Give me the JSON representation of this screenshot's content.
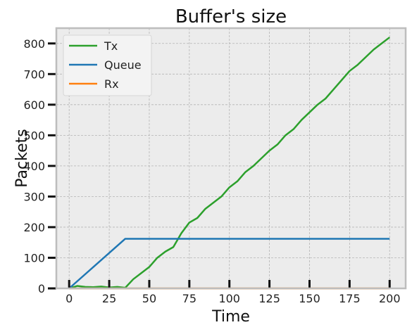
{
  "chart_data": {
    "type": "line",
    "title": "Buffer's size",
    "xlabel": "Time",
    "ylabel": "Packets",
    "xlim": [
      -8,
      210
    ],
    "ylim": [
      0,
      850
    ],
    "xticks": [
      0,
      25,
      50,
      75,
      100,
      125,
      150,
      175,
      200
    ],
    "yticks": [
      0,
      100,
      200,
      300,
      400,
      500,
      600,
      700,
      800
    ],
    "grid": true,
    "legend_position": "top-left",
    "background": "#ececec",
    "series": [
      {
        "name": "Tx",
        "color": "#2ca02c",
        "x": [
          0,
          5,
          10,
          15,
          20,
          25,
          30,
          35,
          40,
          45,
          50,
          55,
          60,
          65,
          70,
          75,
          80,
          85,
          90,
          95,
          100,
          105,
          110,
          115,
          120,
          125,
          130,
          135,
          140,
          145,
          150,
          155,
          160,
          165,
          170,
          175,
          180,
          185,
          190,
          195,
          200
        ],
        "values": [
          0,
          8,
          5,
          4,
          6,
          3,
          5,
          2,
          30,
          50,
          70,
          100,
          120,
          135,
          180,
          215,
          230,
          260,
          280,
          300,
          330,
          350,
          380,
          400,
          425,
          450,
          470,
          500,
          520,
          550,
          575,
          600,
          620,
          650,
          680,
          710,
          730,
          755,
          780,
          800,
          820
        ]
      },
      {
        "name": "Queue",
        "color": "#1f77b4",
        "x": [
          0,
          35,
          200
        ],
        "values": [
          0,
          162,
          162
        ]
      },
      {
        "name": "Rx",
        "color": "#ff7f0e",
        "x": [
          0,
          200
        ],
        "values": [
          0,
          0
        ]
      }
    ]
  }
}
